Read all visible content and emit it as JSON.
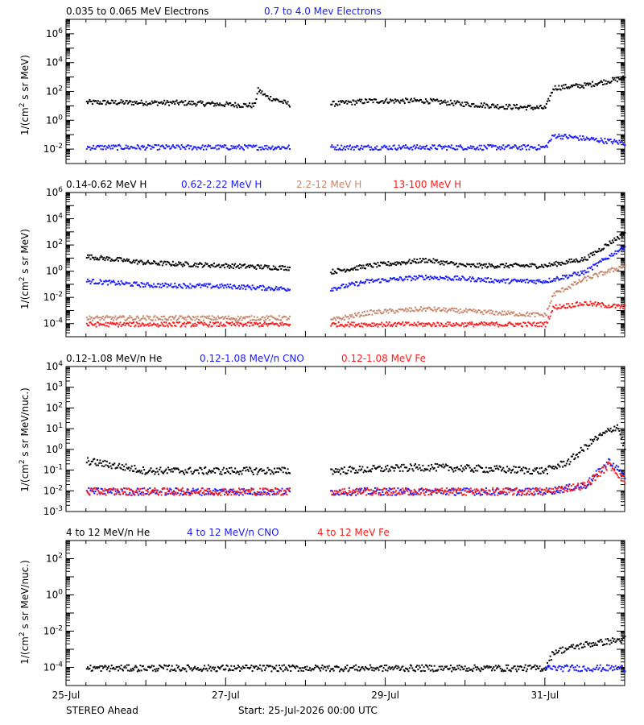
{
  "colors": {
    "black": "#000000",
    "blue": "#1a1aff",
    "tan": "#c8866b",
    "red": "#ff1a1a"
  },
  "footer": {
    "left": "STEREO Ahead",
    "center": "Start: 25-Jul-2026 00:00 UTC"
  },
  "chart_data": [
    {
      "type": "scatter",
      "panel": "electrons",
      "legend": [
        {
          "text": "0.035 to 0.065 MeV Electrons",
          "color": "#000000"
        },
        {
          "text": "0.7 to 4.0 Mev Electrons",
          "color": "#1a1aff"
        }
      ],
      "ylabel": "1/(cm2 s sr MeV)",
      "yscale": "log",
      "ylim": [
        0.001,
        10000000
      ],
      "yticks": [
        "10-2",
        "100",
        "102",
        "104",
        "106"
      ],
      "xlim_days": [
        0,
        7
      ],
      "series": [
        {
          "color": "#000000",
          "gaps": [
            [
              2.8,
              3.3
            ]
          ],
          "points": [
            [
              0.25,
              20
            ],
            [
              1.5,
              18
            ],
            [
              2.0,
              14
            ],
            [
              2.35,
              12
            ],
            [
              2.4,
              150
            ],
            [
              2.5,
              50
            ],
            [
              2.8,
              14
            ],
            [
              3.3,
              15
            ],
            [
              3.8,
              25
            ],
            [
              4.5,
              25
            ],
            [
              5.0,
              15
            ],
            [
              5.5,
              10
            ],
            [
              6.0,
              8
            ],
            [
              6.1,
              200
            ],
            [
              6.5,
              300
            ],
            [
              7.0,
              1000
            ]
          ]
        },
        {
          "color": "#1a1aff",
          "gaps": [
            [
              2.8,
              3.3
            ]
          ],
          "points": [
            [
              0.25,
              0.015
            ],
            [
              2.8,
              0.015
            ],
            [
              3.3,
              0.015
            ],
            [
              6.0,
              0.015
            ],
            [
              6.1,
              0.1
            ],
            [
              6.5,
              0.06
            ],
            [
              7.0,
              0.03
            ]
          ]
        }
      ]
    },
    {
      "type": "scatter",
      "panel": "protons",
      "legend": [
        {
          "text": "0.14-0.62 MeV H",
          "color": "#000000"
        },
        {
          "text": "0.62-2.22 MeV H",
          "color": "#1a1aff"
        },
        {
          "text": "2.2-12 MeV H",
          "color": "#c8866b"
        },
        {
          "text": "13-100 MeV H",
          "color": "#ff1a1a"
        }
      ],
      "ylabel": "1/(cm2 s sr MeV)",
      "yscale": "log",
      "ylim": [
        1e-05,
        1000000
      ],
      "yticks": [
        "10-4",
        "10-2",
        "100",
        "102",
        "104",
        "106"
      ],
      "xlim_days": [
        0,
        7
      ],
      "series": [
        {
          "color": "#000000",
          "gaps": [
            [
              2.8,
              3.3
            ]
          ],
          "points": [
            [
              0.25,
              15
            ],
            [
              1.0,
              5
            ],
            [
              2.0,
              3
            ],
            [
              2.8,
              2
            ],
            [
              3.3,
              1
            ],
            [
              3.8,
              3
            ],
            [
              4.5,
              8
            ],
            [
              5.0,
              3
            ],
            [
              6.0,
              3
            ],
            [
              6.5,
              10
            ],
            [
              7.0,
              1000
            ]
          ]
        },
        {
          "color": "#1a1aff",
          "gaps": [
            [
              2.8,
              3.3
            ]
          ],
          "points": [
            [
              0.25,
              0.2
            ],
            [
              1.0,
              0.1
            ],
            [
              2.0,
              0.08
            ],
            [
              2.8,
              0.05
            ],
            [
              3.3,
              0.05
            ],
            [
              3.8,
              0.2
            ],
            [
              4.5,
              0.4
            ],
            [
              5.0,
              0.3
            ],
            [
              5.5,
              0.2
            ],
            [
              6.0,
              0.2
            ],
            [
              6.5,
              1
            ],
            [
              7.0,
              100
            ]
          ]
        },
        {
          "color": "#c8866b",
          "gaps": [
            [
              2.8,
              3.3
            ]
          ],
          "points": [
            [
              0.25,
              0.0003
            ],
            [
              2.8,
              0.0003
            ],
            [
              3.3,
              0.0002
            ],
            [
              3.8,
              0.0008
            ],
            [
              4.5,
              0.0015
            ],
            [
              5.0,
              0.001
            ],
            [
              6.0,
              0.0005
            ],
            [
              6.1,
              0.02
            ],
            [
              6.5,
              0.3
            ],
            [
              7.0,
              3
            ]
          ]
        },
        {
          "color": "#ff1a1a",
          "gaps": [
            [
              2.8,
              3.3
            ]
          ],
          "points": [
            [
              0.25,
              0.0001
            ],
            [
              2.8,
              0.0001
            ],
            [
              3.3,
              0.0001
            ],
            [
              6.0,
              0.0001
            ],
            [
              6.1,
              0.002
            ],
            [
              6.5,
              0.004
            ],
            [
              7.0,
              0.002
            ]
          ]
        }
      ]
    },
    {
      "type": "scatter",
      "panel": "heavy-ions-low",
      "legend": [
        {
          "text": "0.12-1.08 MeV/n He",
          "color": "#000000"
        },
        {
          "text": "0.12-1.08 MeV/n CNO",
          "color": "#1a1aff"
        },
        {
          "text": "0.12-1.08 MeV Fe",
          "color": "#ff1a1a"
        }
      ],
      "ylabel": "1/(cm2 s sr MeV/nuc.)",
      "yscale": "log",
      "ylim": [
        0.001,
        10000
      ],
      "yticks": [
        "10-3",
        "10-2",
        "10-1",
        "100",
        "101",
        "102",
        "103",
        "104"
      ],
      "xlim_days": [
        0,
        7
      ],
      "series": [
        {
          "color": "#000000",
          "gaps": [
            [
              2.8,
              3.3
            ]
          ],
          "points": [
            [
              0.25,
              0.3
            ],
            [
              1.0,
              0.1
            ],
            [
              2.8,
              0.1
            ],
            [
              3.3,
              0.1
            ],
            [
              4.5,
              0.15
            ],
            [
              6.0,
              0.1
            ],
            [
              6.3,
              0.3
            ],
            [
              6.6,
              3
            ],
            [
              6.9,
              15
            ],
            [
              7.0,
              1
            ]
          ]
        },
        {
          "color": "#1a1aff",
          "gaps": [
            [
              2.8,
              3.3
            ]
          ],
          "points": [
            [
              0.25,
              0.01
            ],
            [
              2.8,
              0.01
            ],
            [
              3.3,
              0.01
            ],
            [
              6.0,
              0.01
            ],
            [
              6.5,
              0.02
            ],
            [
              6.8,
              0.3
            ],
            [
              7.0,
              0.05
            ]
          ]
        },
        {
          "color": "#ff1a1a",
          "gaps": [
            [
              2.8,
              3.3
            ]
          ],
          "points": [
            [
              0.25,
              0.01
            ],
            [
              2.8,
              0.01
            ],
            [
              3.3,
              0.01
            ],
            [
              6.0,
              0.01
            ],
            [
              6.5,
              0.02
            ],
            [
              6.8,
              0.2
            ],
            [
              7.0,
              0.03
            ]
          ]
        }
      ]
    },
    {
      "type": "scatter",
      "panel": "heavy-ions-high",
      "legend": [
        {
          "text": "4 to 12 MeV/n He",
          "color": "#000000"
        },
        {
          "text": "4 to 12 MeV/n CNO",
          "color": "#1a1aff"
        },
        {
          "text": "4 to 12 MeV Fe",
          "color": "#ff1a1a"
        }
      ],
      "ylabel": "1/(cm2 s sr MeV/nuc.)",
      "yscale": "log",
      "ylim": [
        1e-05,
        1000
      ],
      "yticks": [
        "10-4",
        "10-2",
        "100",
        "102"
      ],
      "xlim_days": [
        0,
        7
      ],
      "series": [
        {
          "color": "#000000",
          "gaps": [],
          "points": [
            [
              0.25,
              0.0001
            ],
            [
              6.0,
              0.0001
            ],
            [
              6.1,
              0.0008
            ],
            [
              6.5,
              0.002
            ],
            [
              7.0,
              0.004
            ]
          ]
        },
        {
          "color": "#1a1aff",
          "gaps": [],
          "points": [
            [
              6.0,
              0.0001
            ],
            [
              7.0,
              0.0001
            ]
          ]
        }
      ]
    }
  ],
  "xaxis": {
    "ticks": [
      "25-Jul",
      "27-Jul",
      "29-Jul",
      "31-Jul"
    ],
    "tick_days": [
      0,
      2,
      4,
      6
    ]
  }
}
